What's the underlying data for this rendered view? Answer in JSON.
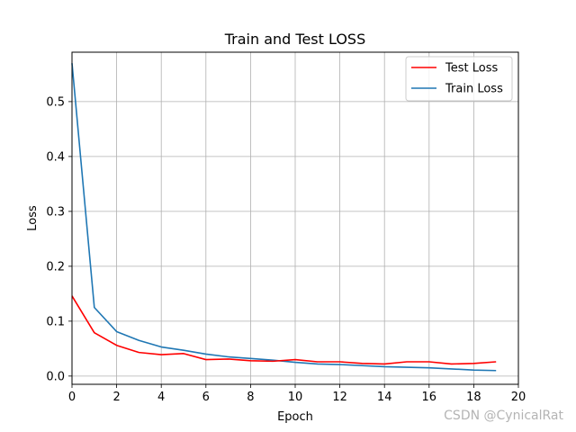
{
  "chart_data": {
    "type": "line",
    "title": "Train and Test LOSS",
    "xlabel": "Epoch",
    "ylabel": "Loss",
    "xlim": [
      0,
      20
    ],
    "ylim": [
      -0.015,
      0.59
    ],
    "xticks": [
      0,
      2,
      4,
      6,
      8,
      10,
      12,
      14,
      16,
      18,
      20
    ],
    "yticks": [
      0.0,
      0.1,
      0.2,
      0.3,
      0.4,
      0.5
    ],
    "ytick_labels": [
      "0.0",
      "0.1",
      "0.2",
      "0.3",
      "0.4",
      "0.5"
    ],
    "grid": true,
    "legend_position": "top-right",
    "x": [
      0,
      1,
      2,
      3,
      4,
      5,
      6,
      7,
      8,
      9,
      10,
      11,
      12,
      13,
      14,
      15,
      16,
      17,
      18,
      19
    ],
    "series": [
      {
        "name": "Test Loss",
        "color": "#ff0000",
        "values": [
          0.146,
          0.079,
          0.056,
          0.043,
          0.039,
          0.041,
          0.03,
          0.031,
          0.028,
          0.027,
          0.03,
          0.026,
          0.026,
          0.023,
          0.022,
          0.026,
          0.026,
          0.022,
          0.023,
          0.026
        ]
      },
      {
        "name": "Train Loss",
        "color": "#1f77b4",
        "values": [
          0.57,
          0.125,
          0.081,
          0.065,
          0.053,
          0.047,
          0.04,
          0.035,
          0.032,
          0.029,
          0.025,
          0.022,
          0.021,
          0.019,
          0.017,
          0.016,
          0.015,
          0.013,
          0.011,
          0.01
        ]
      }
    ]
  },
  "watermark": "CSDN @CynicalRat"
}
